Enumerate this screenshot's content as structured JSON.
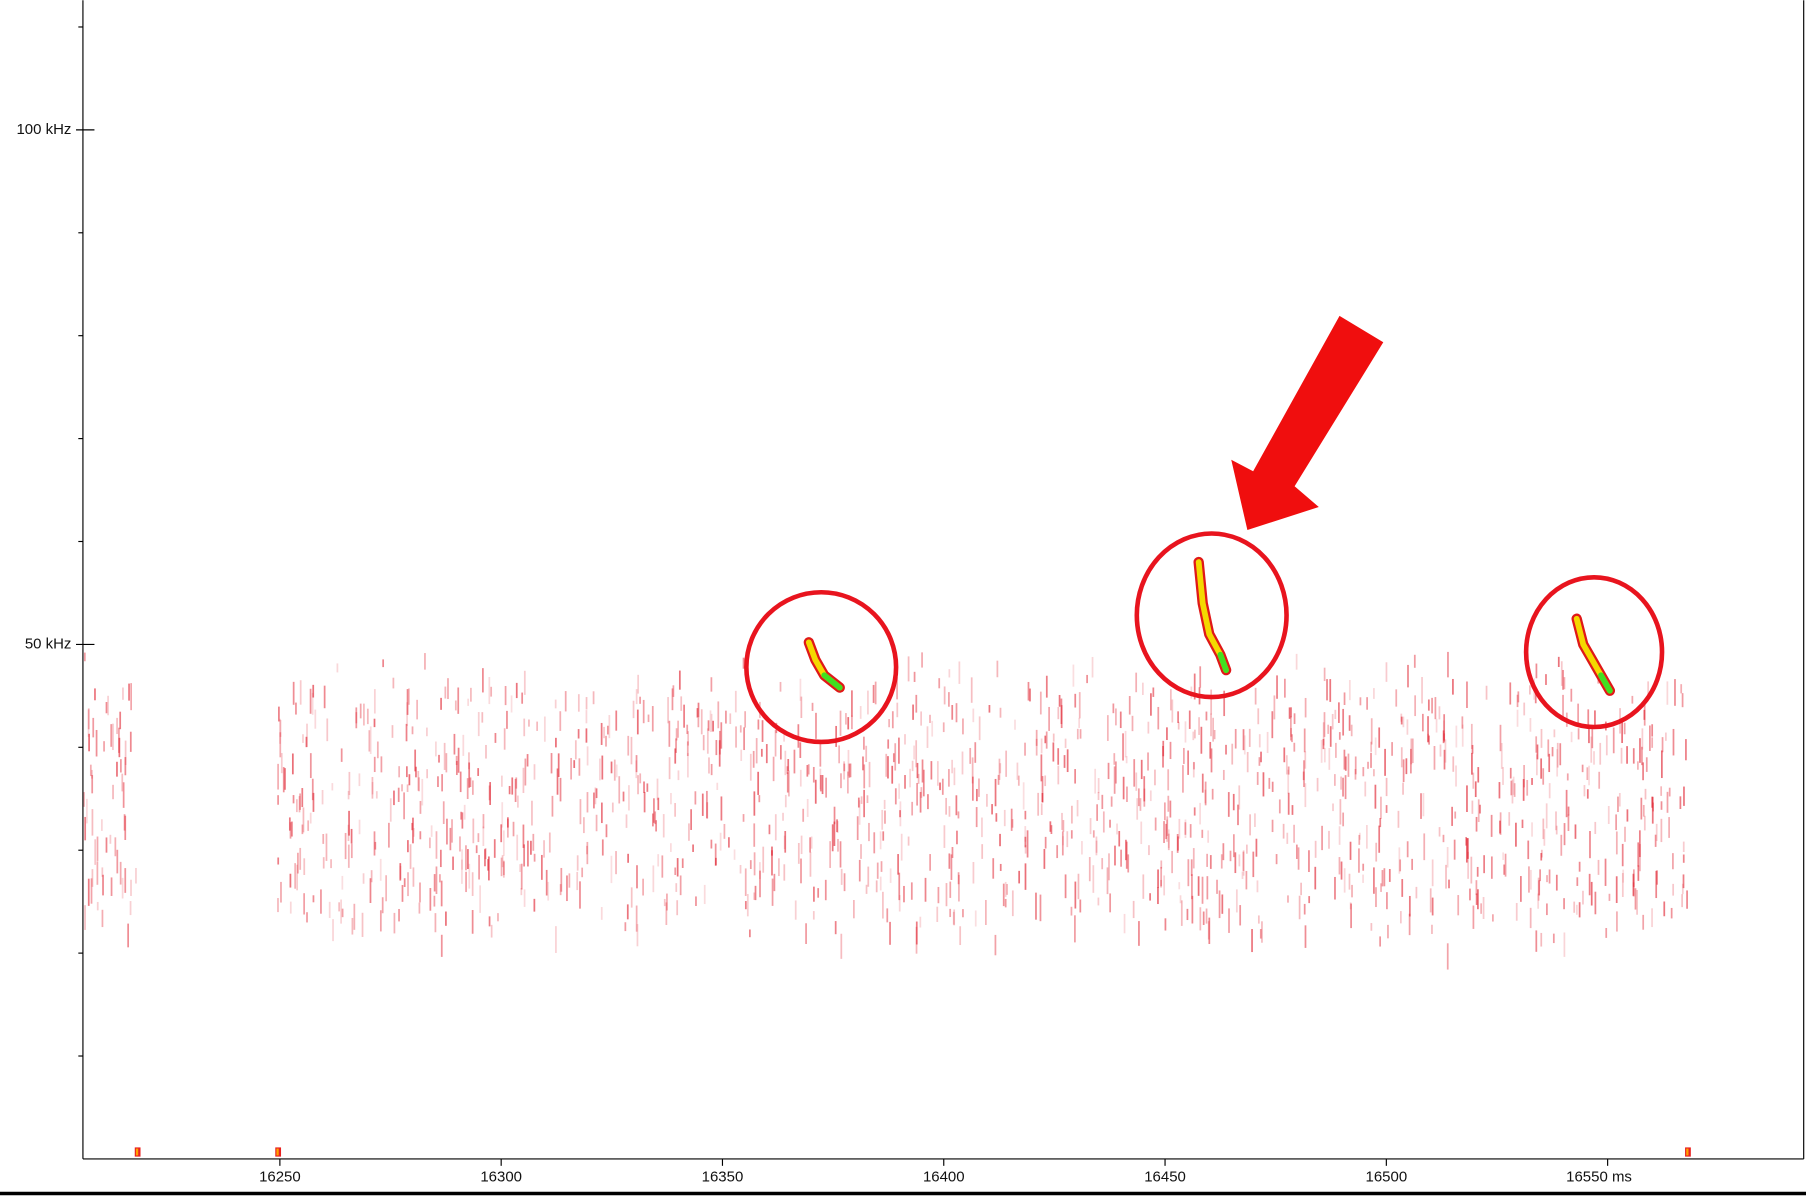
{
  "chart_data": {
    "type": "spectrogram",
    "xlim": [
      16205.5,
      16594.3
    ],
    "xticks": [
      16250,
      16300,
      16350,
      16400,
      16450,
      16500,
      {
        "value": 16550,
        "label": "16550 ms"
      }
    ],
    "ylim": [
      0,
      112.6
    ],
    "yticks": [
      {
        "value": 50,
        "label": "50 kHz"
      },
      {
        "value": 100,
        "label": "100 kHz"
      }
    ],
    "yminorticks": [
      10,
      20,
      30,
      40,
      60,
      70,
      80,
      90,
      110
    ],
    "calls": [
      {
        "x": [
          16369.5,
          16371,
          16373,
          16376.5
        ],
        "y": [
          50.2,
          48.5,
          47,
          45.8
        ]
      },
      {
        "x": [
          16457.6,
          16458.5,
          16460,
          16462.5,
          16463.8
        ],
        "y": [
          58,
          54,
          51,
          49,
          47.5
        ]
      },
      {
        "x": [
          16543,
          16544.5,
          16546.5,
          16548.5,
          16550.5
        ],
        "y": [
          52.5,
          50,
          48.5,
          47,
          45.5
        ]
      }
    ]
  }
}
